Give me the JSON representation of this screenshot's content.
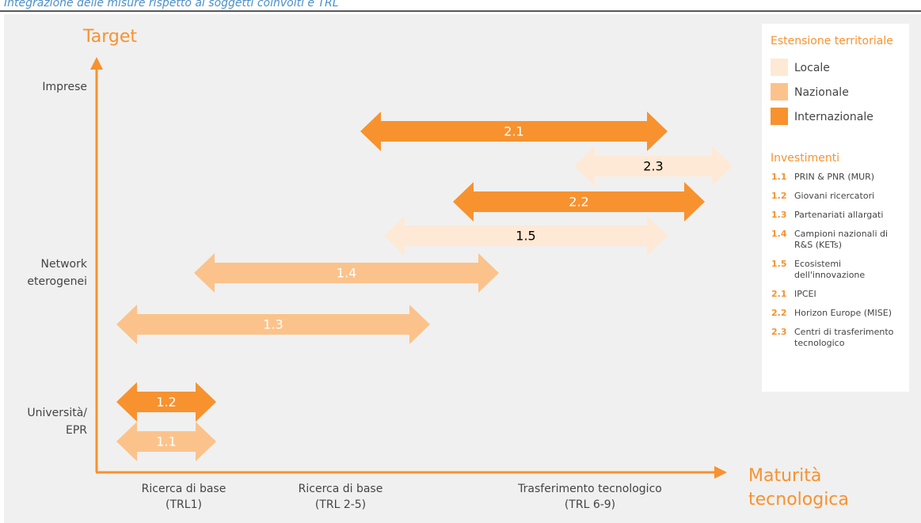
{
  "caption": "Integrazione delle misure rispetto ai soggetti coinvolti e TRL",
  "y_axis": {
    "title": "Target",
    "labels": [
      [
        "Imprese"
      ],
      [
        "Network",
        "eterogenei"
      ],
      [
        "Università/",
        "EPR"
      ]
    ]
  },
  "x_axis": {
    "title": [
      "Maturità",
      "tecnologica"
    ],
    "labels": [
      [
        "Ricerca di base",
        "(TRL1)"
      ],
      [
        "Ricerca di base",
        "(TRL 2-5)"
      ],
      [
        "Trasferimento tecnologico",
        "(TRL 6-9)"
      ]
    ]
  },
  "arrows": [
    "2.1",
    "2.3",
    "2.2",
    "1.5",
    "1.4",
    "1.3",
    "1.2",
    "1.1"
  ],
  "legend": {
    "extent_title": "Estensione territoriale",
    "extents": [
      "Locale",
      "Nazionale",
      "Internazionale"
    ],
    "investments_title": "Investimenti",
    "investments": [
      {
        "code": "1.1",
        "lines": [
          "PRIN & PNR (MUR)"
        ]
      },
      {
        "code": "1.2",
        "lines": [
          "Giovani ricercatori"
        ]
      },
      {
        "code": "1.3",
        "lines": [
          "Partenariati allargati"
        ]
      },
      {
        "code": "1.4",
        "lines": [
          "Campioni nazionali di",
          "R&S (KETs)"
        ]
      },
      {
        "code": "1.5",
        "lines": [
          "Ecosistemi",
          "dell'innovazione"
        ]
      },
      {
        "code": "2.1",
        "lines": [
          "IPCEI"
        ]
      },
      {
        "code": "2.2",
        "lines": [
          "Horizon Europe (MISE)"
        ]
      },
      {
        "code": "2.3",
        "lines": [
          "Centri di trasferimento",
          "tecnologico"
        ]
      }
    ]
  }
}
